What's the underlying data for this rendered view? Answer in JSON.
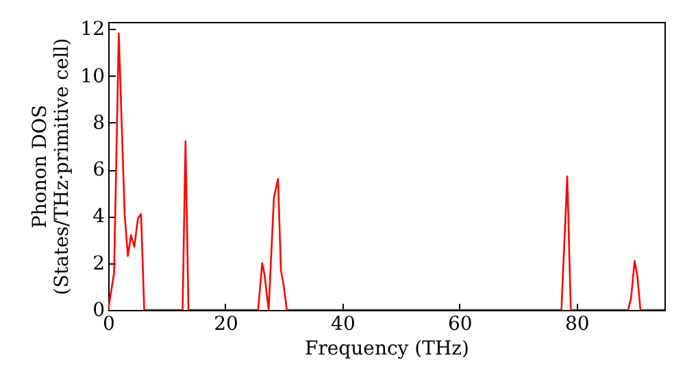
{
  "chart_data": {
    "type": "line",
    "xlabel": "Frequency (THz)",
    "ylabel": "Phonon DOS\n(States/THz·primitive cell)",
    "x": [
      0,
      1.0,
      1.8,
      2.8,
      3.35,
      3.9,
      4.45,
      5.07,
      5.6,
      6.15,
      12.7,
      13.2,
      13.7,
      25.6,
      26.3,
      26.7,
      27.4,
      28.3,
      29.0,
      29.5,
      30.0,
      30.5,
      77.4,
      78.4,
      79.0,
      88.8,
      89.3,
      89.9,
      90.35,
      90.9,
      95
    ],
    "series": [
      {
        "color": "#ff0000",
        "values": [
          0,
          1.6,
          11.8,
          4.1,
          2.3,
          3.2,
          2.7,
          3.9,
          4.1,
          0,
          0,
          7.2,
          0,
          0,
          2.0,
          1.5,
          0,
          4.8,
          5.6,
          1.7,
          1.0,
          0,
          0,
          5.7,
          0,
          0,
          0.5,
          2.1,
          1.5,
          0,
          0
        ]
      }
    ],
    "xlim": [
      0,
      95
    ],
    "xticks": [
      0,
      20,
      40,
      60,
      80
    ],
    "ylim": [
      0,
      12.3
    ],
    "yticks": [
      0,
      2,
      4,
      6,
      8,
      10,
      12
    ],
    "grid": false,
    "line_style": "solid"
  }
}
